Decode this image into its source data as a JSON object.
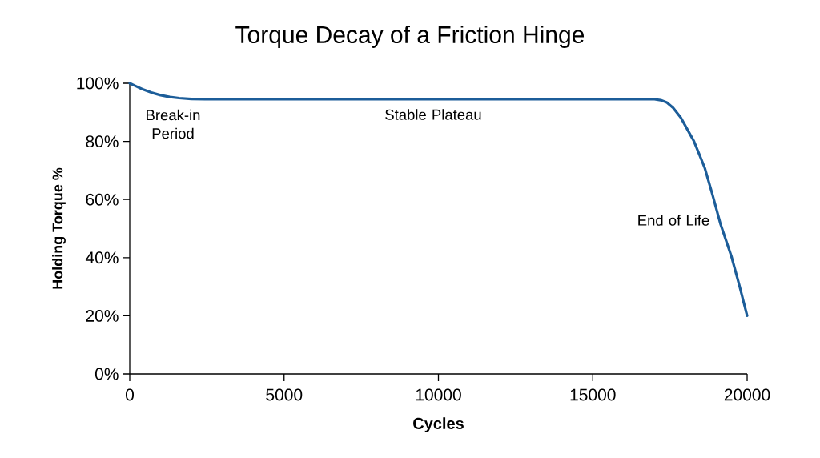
{
  "chart_data": {
    "type": "line",
    "title": "Torque Decay of a Friction Hinge",
    "xlabel": "Cycles",
    "ylabel": "Holding Torque %",
    "x": [
      0,
      200,
      400,
      700,
      1000,
      1300,
      1600,
      2000,
      2500,
      17000,
      17200,
      17400,
      17600,
      17850,
      18050,
      18280,
      18450,
      18630,
      18880,
      19140,
      19490,
      19750,
      20000
    ],
    "series": [
      {
        "color": "#1c5d99",
        "values": [
          100,
          99,
          98,
          96.8,
          95.9,
          95.3,
          94.9,
          94.6,
          94.5,
          94.5,
          94.2,
          93.4,
          91.6,
          88.2,
          84.4,
          80,
          75.6,
          70.8,
          61.6,
          51.5,
          40.5,
          30.4,
          20
        ]
      }
    ],
    "xlim": [
      0,
      20000
    ],
    "ylim": [
      0,
      100
    ],
    "xticks": [
      0,
      5000,
      10000,
      15000,
      20000
    ],
    "yticks": [
      {
        "value": 0,
        "label": "0%"
      },
      {
        "value": 20,
        "label": "20%"
      },
      {
        "value": 40,
        "label": "40%"
      },
      {
        "value": 60,
        "label": "60%"
      },
      {
        "value": 80,
        "label": "80%"
      },
      {
        "value": 100,
        "label": "100%"
      }
    ],
    "annotations": [
      "Break-in Period",
      "Stable Plateau",
      "End of Life"
    ],
    "marker": "none",
    "line_style": "solid"
  }
}
